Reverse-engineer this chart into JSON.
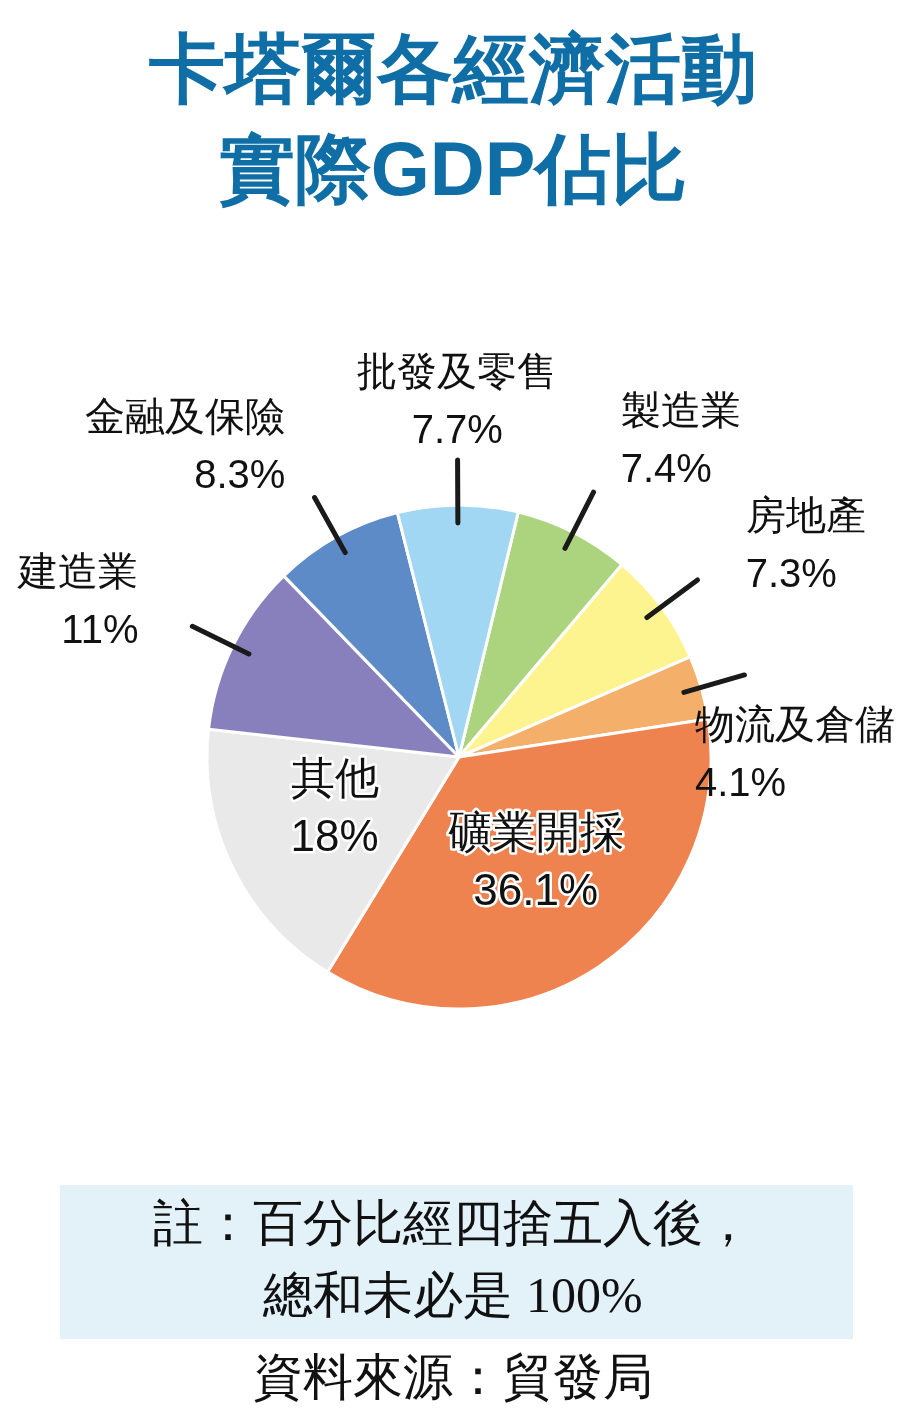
{
  "chart_data": {
    "type": "pie",
    "title": "卡塔爾各經濟活動實際GDP佔比",
    "categories": [
      "製造業",
      "房地產",
      "物流及倉儲",
      "礦業開採",
      "其他",
      "建造業",
      "金融及保險",
      "批發及零售"
    ],
    "values": [
      7.4,
      7.3,
      4.1,
      36.1,
      18,
      11,
      8.3,
      7.7
    ],
    "value_labels": [
      "7.4%",
      "7.3%",
      "4.1%",
      "36.1%",
      "18%",
      "11%",
      "8.3%",
      "7.7%"
    ],
    "colors": [
      "#acd47e",
      "#fdf38f",
      "#f4b06a",
      "#ef834f",
      "#e9e9e9",
      "#8880bd",
      "#5d8bc7",
      "#a2d7f4"
    ],
    "annotations": [
      "註：百分比經四捨五入後，總和未必是 100%",
      "資料來源：貿發局"
    ]
  }
}
